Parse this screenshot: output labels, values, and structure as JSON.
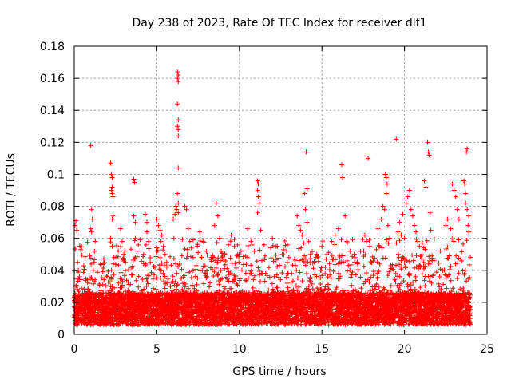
{
  "chart_data": {
    "type": "scatter",
    "title": "Day 238 of 2023, Rate Of TEC Index for receiver dlf1",
    "xlabel": "GPS time / hours",
    "ylabel": "ROTI / TECUs",
    "xlim": [
      0,
      25
    ],
    "ylim": [
      0,
      0.18
    ],
    "xticks": [
      0,
      5,
      10,
      15,
      20,
      25
    ],
    "yticks": [
      0,
      0.02,
      0.04,
      0.06,
      0.08,
      0.1,
      0.12,
      0.14,
      0.16,
      0.18
    ],
    "xtick_labels": [
      "0",
      "5",
      "10",
      "15",
      "20",
      "25"
    ],
    "ytick_labels": [
      "0",
      "0.02",
      "0.04",
      "0.06",
      "0.08",
      "0.1",
      "0.12",
      "0.14",
      "0.16",
      "0.18"
    ],
    "grid": true,
    "marker": "plus",
    "marker_color": "#ff0000",
    "series": [
      {
        "points": [
          [
            0.05,
            0.068
          ],
          [
            0.1,
            0.071
          ],
          [
            0.15,
            0.065
          ],
          [
            0.2,
            0.045
          ],
          [
            0.25,
            0.04
          ],
          [
            0.3,
            0.035
          ],
          [
            0.1,
            0.03
          ],
          [
            0.2,
            0.028
          ],
          [
            1.0,
            0.118
          ],
          [
            1.05,
            0.078
          ],
          [
            1.1,
            0.072
          ],
          [
            1.0,
            0.066
          ],
          [
            1.05,
            0.064
          ],
          [
            1.2,
            0.045
          ],
          [
            1.15,
            0.04
          ],
          [
            1.25,
            0.033
          ],
          [
            2.2,
            0.107
          ],
          [
            2.25,
            0.1
          ],
          [
            2.3,
            0.098
          ],
          [
            2.3,
            0.092
          ],
          [
            2.25,
            0.09
          ],
          [
            2.3,
            0.088
          ],
          [
            2.35,
            0.086
          ],
          [
            2.3,
            0.072
          ],
          [
            2.35,
            0.074
          ],
          [
            2.2,
            0.06
          ],
          [
            2.3,
            0.055
          ],
          [
            2.4,
            0.048
          ],
          [
            2.8,
            0.066
          ],
          [
            2.9,
            0.058
          ],
          [
            3.0,
            0.05
          ],
          [
            3.1,
            0.045
          ],
          [
            3.6,
            0.097
          ],
          [
            3.65,
            0.095
          ],
          [
            3.6,
            0.074
          ],
          [
            3.7,
            0.07
          ],
          [
            3.7,
            0.06
          ],
          [
            3.8,
            0.052
          ],
          [
            4.3,
            0.075
          ],
          [
            4.4,
            0.07
          ],
          [
            4.4,
            0.064
          ],
          [
            4.5,
            0.058
          ],
          [
            4.2,
            0.05
          ],
          [
            4.6,
            0.045
          ],
          [
            5.0,
            0.072
          ],
          [
            5.1,
            0.068
          ],
          [
            5.2,
            0.065
          ],
          [
            5.3,
            0.062
          ],
          [
            5.25,
            0.058
          ],
          [
            5.4,
            0.055
          ],
          [
            5.5,
            0.05
          ],
          [
            5.2,
            0.048
          ],
          [
            5.6,
            0.045
          ],
          [
            6.0,
            0.072
          ],
          [
            6.1,
            0.075
          ],
          [
            6.2,
            0.078
          ],
          [
            6.15,
            0.08
          ],
          [
            6.25,
            0.164
          ],
          [
            6.3,
            0.162
          ],
          [
            6.25,
            0.16
          ],
          [
            6.3,
            0.158
          ],
          [
            6.25,
            0.144
          ],
          [
            6.3,
            0.134
          ],
          [
            6.25,
            0.13
          ],
          [
            6.3,
            0.128
          ],
          [
            6.3,
            0.124
          ],
          [
            6.3,
            0.104
          ],
          [
            6.25,
            0.088
          ],
          [
            6.3,
            0.082
          ],
          [
            6.3,
            0.076
          ],
          [
            6.7,
            0.08
          ],
          [
            6.8,
            0.078
          ],
          [
            6.9,
            0.066
          ],
          [
            7.0,
            0.058
          ],
          [
            7.1,
            0.054
          ],
          [
            7.2,
            0.048
          ],
          [
            7.6,
            0.064
          ],
          [
            7.8,
            0.058
          ],
          [
            8.0,
            0.052
          ],
          [
            8.3,
            0.048
          ],
          [
            8.6,
            0.082
          ],
          [
            8.7,
            0.074
          ],
          [
            8.5,
            0.068
          ],
          [
            8.8,
            0.06
          ],
          [
            8.9,
            0.052
          ],
          [
            8.6,
            0.045
          ],
          [
            9.5,
            0.062
          ],
          [
            9.7,
            0.055
          ],
          [
            9.9,
            0.05
          ],
          [
            10.1,
            0.052
          ],
          [
            10.5,
            0.066
          ],
          [
            10.7,
            0.058
          ],
          [
            10.9,
            0.052
          ],
          [
            11.1,
            0.096
          ],
          [
            11.15,
            0.094
          ],
          [
            11.1,
            0.09
          ],
          [
            11.15,
            0.086
          ],
          [
            11.2,
            0.082
          ],
          [
            11.1,
            0.076
          ],
          [
            11.3,
            0.065
          ],
          [
            11.5,
            0.056
          ],
          [
            12.0,
            0.06
          ],
          [
            12.3,
            0.055
          ],
          [
            12.6,
            0.05
          ],
          [
            13.0,
            0.048
          ],
          [
            13.5,
            0.074
          ],
          [
            13.6,
            0.068
          ],
          [
            13.7,
            0.065
          ],
          [
            13.8,
            0.062
          ],
          [
            13.9,
            0.057
          ],
          [
            13.95,
            0.088
          ],
          [
            14.05,
            0.114
          ],
          [
            14.1,
            0.091
          ],
          [
            14.0,
            0.078
          ],
          [
            14.1,
            0.07
          ],
          [
            14.2,
            0.058
          ],
          [
            14.3,
            0.05
          ],
          [
            15.0,
            0.055
          ],
          [
            15.3,
            0.05
          ],
          [
            15.6,
            0.058
          ],
          [
            15.8,
            0.062
          ],
          [
            16.0,
            0.066
          ],
          [
            16.2,
            0.106
          ],
          [
            16.25,
            0.098
          ],
          [
            16.4,
            0.074
          ],
          [
            16.5,
            0.058
          ],
          [
            16.7,
            0.052
          ],
          [
            17.0,
            0.048
          ],
          [
            17.6,
            0.062
          ],
          [
            17.7,
            0.058
          ],
          [
            17.8,
            0.11
          ],
          [
            17.9,
            0.055
          ],
          [
            18.4,
            0.066
          ],
          [
            18.6,
            0.072
          ],
          [
            18.7,
            0.08
          ],
          [
            18.8,
            0.078
          ],
          [
            18.85,
            0.1
          ],
          [
            18.9,
            0.098
          ],
          [
            18.95,
            0.094
          ],
          [
            18.9,
            0.088
          ],
          [
            19.0,
            0.068
          ],
          [
            19.1,
            0.06
          ],
          [
            19.5,
            0.122
          ],
          [
            19.6,
            0.064
          ],
          [
            19.7,
            0.07
          ],
          [
            19.8,
            0.062
          ],
          [
            19.9,
            0.075
          ],
          [
            20.0,
            0.06
          ],
          [
            20.1,
            0.082
          ],
          [
            20.2,
            0.086
          ],
          [
            20.3,
            0.09
          ],
          [
            20.4,
            0.078
          ],
          [
            20.5,
            0.074
          ],
          [
            20.6,
            0.068
          ],
          [
            20.7,
            0.064
          ],
          [
            20.8,
            0.058
          ],
          [
            20.9,
            0.055
          ],
          [
            21.2,
            0.096
          ],
          [
            21.3,
            0.092
          ],
          [
            21.4,
            0.12
          ],
          [
            21.45,
            0.114
          ],
          [
            21.5,
            0.112
          ],
          [
            21.55,
            0.076
          ],
          [
            21.6,
            0.065
          ],
          [
            22.5,
            0.068
          ],
          [
            22.6,
            0.072
          ],
          [
            22.8,
            0.066
          ],
          [
            22.9,
            0.094
          ],
          [
            23.0,
            0.09
          ],
          [
            23.1,
            0.086
          ],
          [
            23.2,
            0.078
          ],
          [
            23.3,
            0.072
          ],
          [
            23.6,
            0.096
          ],
          [
            23.65,
            0.094
          ],
          [
            23.7,
            0.088
          ],
          [
            23.75,
            0.114
          ],
          [
            23.8,
            0.116
          ],
          [
            23.7,
            0.082
          ],
          [
            23.8,
            0.078
          ],
          [
            23.9,
            0.074
          ],
          [
            23.85,
            0.068
          ],
          [
            23.9,
            0.064
          ]
        ]
      }
    ]
  }
}
